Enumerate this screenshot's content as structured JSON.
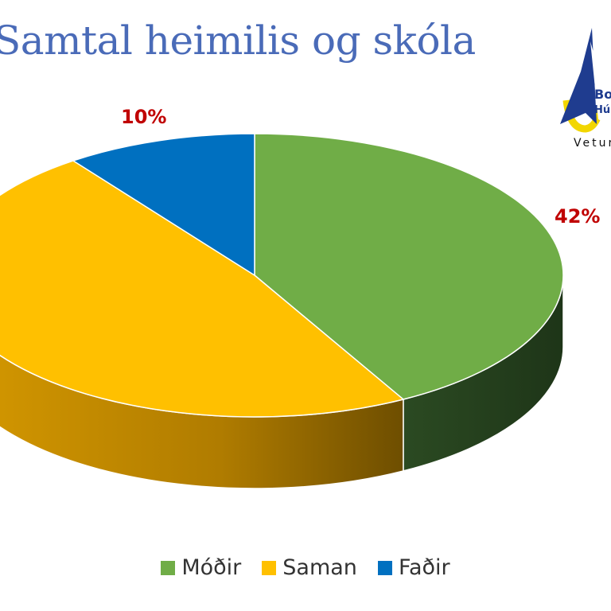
{
  "chart_data": {
    "type": "pie",
    "title": "Samtal heimilis og skóla",
    "categories": [
      "Móðir",
      "Saman",
      "Faðir"
    ],
    "values": [
      42,
      48,
      10
    ],
    "data_labels": [
      "42%",
      "",
      "10%"
    ],
    "colors": [
      "#70ad47",
      "#ffc000",
      "#0070c0"
    ],
    "legend_position": "bottom",
    "label_color": "#c00000",
    "three_d": true
  },
  "logo": {
    "lines": [
      "Bo",
      "Hú"
    ],
    "caption": "Vetur"
  }
}
